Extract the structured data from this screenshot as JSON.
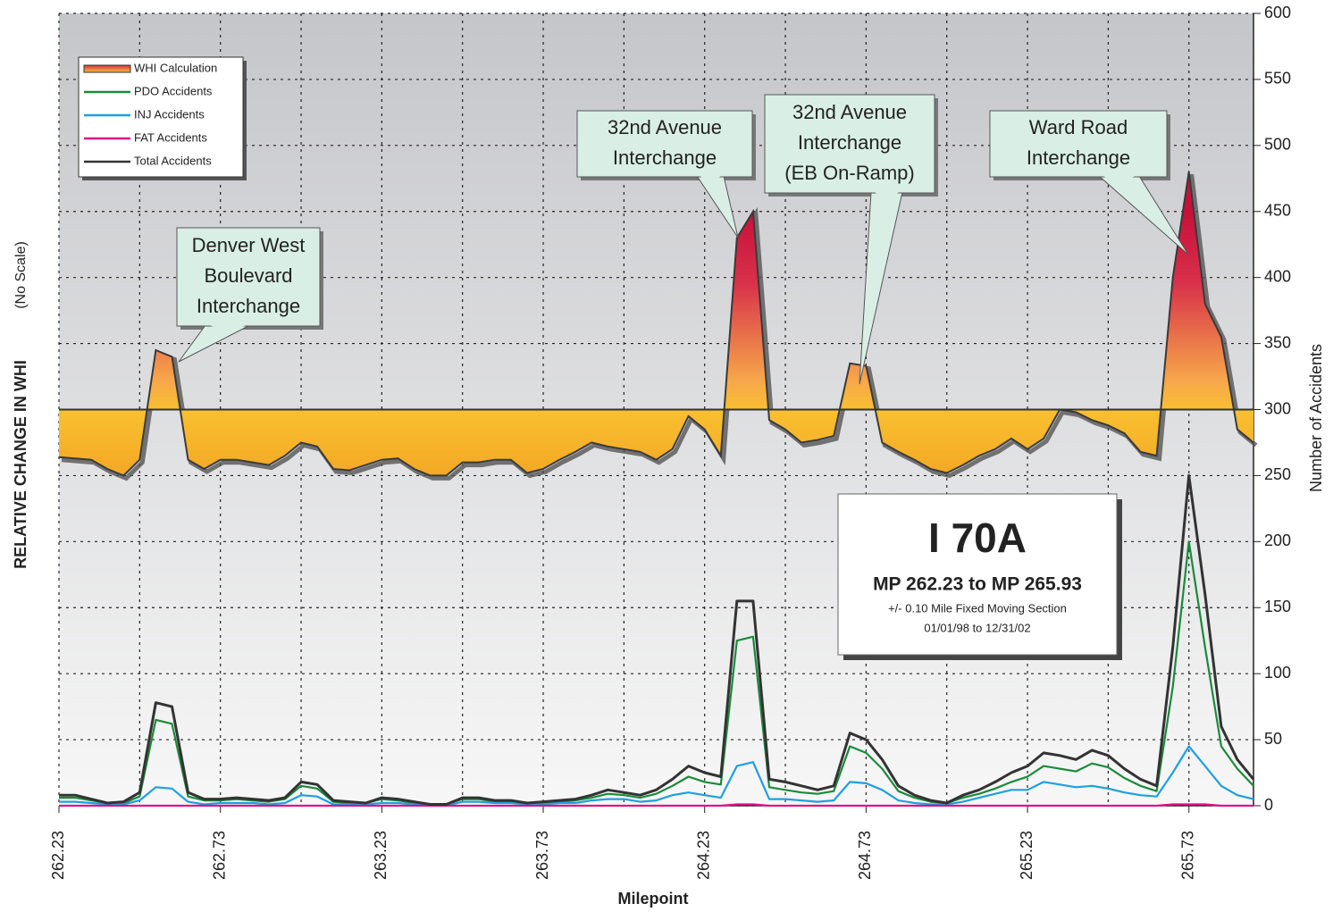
{
  "chart_data": {
    "type": "line",
    "x_label": "Milepoint",
    "y_label": "RELATIVE CHANGE IN WHI",
    "y_label_note": "(No Scale)",
    "y2_label": "Number of Accidents",
    "xlim": [
      262.23,
      265.93
    ],
    "xticks": [
      262.23,
      262.73,
      263.23,
      263.73,
      264.23,
      264.73,
      265.23,
      265.73
    ],
    "xminorticks": [
      262.48,
      262.98,
      263.48,
      263.98,
      264.48,
      264.98,
      265.48
    ],
    "ylim": [
      0,
      600
    ],
    "yticks": [
      0,
      50,
      100,
      150,
      200,
      250,
      300,
      350,
      400,
      450,
      500,
      550,
      600
    ],
    "grid": true,
    "legend": "upper left",
    "x": [
      262.23,
      262.28,
      262.33,
      262.38,
      262.43,
      262.48,
      262.53,
      262.58,
      262.63,
      262.68,
      262.73,
      262.78,
      262.83,
      262.88,
      262.93,
      262.98,
      263.03,
      263.08,
      263.13,
      263.18,
      263.23,
      263.28,
      263.33,
      263.38,
      263.43,
      263.48,
      263.53,
      263.58,
      263.63,
      263.68,
      263.73,
      263.78,
      263.83,
      263.88,
      263.93,
      263.98,
      264.03,
      264.08,
      264.13,
      264.18,
      264.23,
      264.28,
      264.33,
      264.38,
      264.43,
      264.48,
      264.53,
      264.58,
      264.63,
      264.68,
      264.73,
      264.78,
      264.83,
      264.88,
      264.93,
      264.98,
      265.03,
      265.08,
      265.13,
      265.18,
      265.23,
      265.28,
      265.33,
      265.38,
      265.43,
      265.48,
      265.53,
      265.58,
      265.63,
      265.68,
      265.73,
      265.78,
      265.83,
      265.88,
      265.93
    ],
    "series": [
      {
        "name": "WHI Calculation",
        "kind": "area",
        "baseline": 300,
        "color": "#e0463a",
        "values": [
          264,
          263,
          262,
          255,
          250,
          262,
          345,
          340,
          262,
          255,
          262,
          262,
          260,
          258,
          265,
          275,
          272,
          255,
          254,
          258,
          262,
          263,
          255,
          250,
          250,
          260,
          260,
          262,
          262,
          252,
          255,
          262,
          268,
          275,
          272,
          270,
          268,
          262,
          270,
          295,
          285,
          265,
          430,
          450,
          292,
          285,
          275,
          277,
          280,
          335,
          333,
          275,
          268,
          262,
          255,
          252,
          258,
          265,
          270,
          278,
          270,
          278,
          300,
          298,
          292,
          288,
          282,
          268,
          265,
          400,
          480,
          380,
          355,
          285,
          275
        ]
      },
      {
        "name": "PDO Accidents",
        "color": "#1a8a3a",
        "values": [
          6,
          6,
          4,
          2,
          2,
          7,
          65,
          62,
          7,
          4,
          4,
          5,
          4,
          3,
          5,
          15,
          13,
          3,
          2,
          2,
          5,
          4,
          2,
          1,
          1,
          5,
          5,
          3,
          3,
          2,
          2,
          3,
          4,
          6,
          9,
          8,
          6,
          9,
          15,
          22,
          18,
          16,
          125,
          128,
          14,
          12,
          10,
          9,
          11,
          45,
          40,
          28,
          11,
          6,
          3,
          2,
          6,
          9,
          13,
          18,
          22,
          30,
          28,
          26,
          32,
          29,
          21,
          15,
          11,
          90,
          200,
          120,
          45,
          28,
          15
        ]
      },
      {
        "name": "INJ Accidents",
        "color": "#1e9fe0",
        "values": [
          3,
          3,
          2,
          1,
          1,
          4,
          14,
          13,
          3,
          1,
          2,
          2,
          2,
          1,
          2,
          8,
          7,
          1,
          1,
          1,
          2,
          2,
          1,
          0,
          0,
          3,
          3,
          2,
          2,
          1,
          1,
          2,
          2,
          4,
          5,
          5,
          3,
          4,
          8,
          10,
          8,
          6,
          30,
          33,
          5,
          5,
          4,
          3,
          4,
          18,
          17,
          12,
          4,
          2,
          1,
          1,
          3,
          6,
          9,
          12,
          12,
          18,
          16,
          14,
          15,
          13,
          10,
          8,
          7,
          25,
          45,
          30,
          15,
          8,
          5
        ]
      },
      {
        "name": "FAT Accidents",
        "color": "#e0108a",
        "values": [
          0,
          0,
          0,
          0,
          0,
          0,
          0,
          0,
          0,
          0,
          0,
          0,
          0,
          0,
          0,
          0,
          0,
          0,
          0,
          0,
          0,
          0,
          0,
          0,
          0,
          0,
          0,
          0,
          0,
          0,
          0,
          0,
          0,
          0,
          0,
          0,
          0,
          0,
          0,
          0,
          0,
          0,
          1,
          1,
          0,
          0,
          0,
          0,
          0,
          0,
          0,
          0,
          0,
          0,
          0,
          0,
          0,
          0,
          0,
          0,
          0,
          0,
          0,
          0,
          0,
          0,
          0,
          0,
          0,
          1,
          1,
          1,
          0,
          0,
          0
        ]
      },
      {
        "name": "Total Accidents",
        "color": "#333333",
        "values": [
          8,
          8,
          5,
          2,
          3,
          10,
          78,
          75,
          10,
          5,
          5,
          6,
          5,
          4,
          6,
          18,
          16,
          4,
          3,
          2,
          6,
          5,
          3,
          1,
          1,
          6,
          6,
          4,
          4,
          2,
          3,
          4,
          5,
          8,
          12,
          10,
          8,
          12,
          20,
          30,
          25,
          22,
          155,
          155,
          20,
          18,
          15,
          12,
          15,
          55,
          50,
          35,
          15,
          8,
          4,
          2,
          8,
          12,
          18,
          25,
          30,
          40,
          38,
          35,
          42,
          38,
          28,
          20,
          15,
          120,
          250,
          160,
          60,
          35,
          20
        ]
      }
    ],
    "annotations": [
      {
        "lines": [
          "Denver West",
          "Boulevard",
          "Interchange"
        ]
      },
      {
        "lines": [
          "32nd Avenue",
          "Interchange"
        ]
      },
      {
        "lines": [
          "32nd Avenue",
          "Interchange",
          "(EB On-Ramp)"
        ]
      },
      {
        "lines": [
          "Ward Road",
          "Interchange"
        ]
      }
    ],
    "info_box": {
      "title": "I 70A",
      "range": "MP 262.23 to MP 265.93",
      "method": "+/- 0.10 Mile Fixed Moving Section",
      "period": "01/01/98 to 12/31/02"
    }
  }
}
